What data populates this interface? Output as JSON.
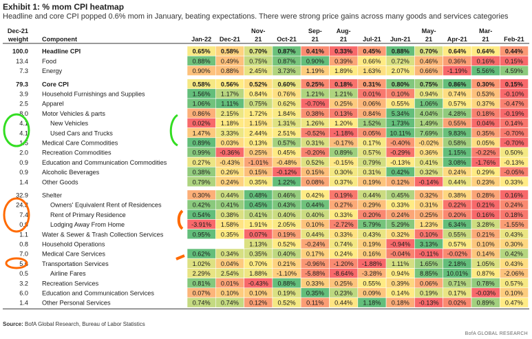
{
  "exhibit_title": "Exhibit 1: % mom CPI heatmap",
  "exhibit_subtitle": "Headline and core CPI popped 0.6% mom in January, beating expectations. There were strong price gains across many goods and services categories",
  "source": {
    "label": "Source:",
    "text": "BofA Global Research, Bureau of Labor Statistics"
  },
  "brand": "BofA GLOBAL RESEARCH",
  "colors": {
    "green": "#63be7b",
    "yellow": "#ffeb84",
    "red": "#f8696b",
    "empty": "#ffffff",
    "annotation": "#33dd22",
    "annotation_orange": "#ff6a00"
  },
  "chart_data": {
    "type": "heatmap",
    "title": "Exhibit 1: % mom CPI heatmap",
    "subtitle": "Headline and core CPI popped 0.6% mom in January, beating expectations. There were strong price gains across many goods and services categories",
    "weight_header": [
      "Dec-21",
      "weight"
    ],
    "component_header": "Component",
    "columns": [
      [
        "",
        "Jan-22"
      ],
      [
        "",
        "Dec-21"
      ],
      [
        "Nov-",
        "21"
      ],
      [
        "",
        "Oct-21"
      ],
      [
        "Sep-",
        "21"
      ],
      [
        "Aug-",
        "21"
      ],
      [
        "",
        "Jul-21"
      ],
      [
        "",
        "Jun-21"
      ],
      [
        "May-",
        "21"
      ],
      [
        "",
        "Apr-21"
      ],
      [
        "Mar-",
        "21"
      ],
      [
        "",
        "Feb-21"
      ]
    ],
    "rows": [
      {
        "weight": "100.0",
        "label": "Headline CPI",
        "bold": true,
        "indent": 0,
        "values": [
          "0.65%",
          "0.58%",
          "0.70%",
          "0.87%",
          "0.41%",
          "0.33%",
          "0.45%",
          "0.88%",
          "0.70%",
          "0.64%",
          "0.64%",
          "0.44%"
        ]
      },
      {
        "weight": "13.4",
        "label": "Food",
        "indent": 0,
        "values": [
          "0.88%",
          "0.49%",
          "0.75%",
          "0.87%",
          "0.90%",
          "0.39%",
          "0.66%",
          "0.72%",
          "0.46%",
          "0.36%",
          "0.16%",
          "0.15%"
        ]
      },
      {
        "weight": "7.3",
        "label": "Energy",
        "indent": 0,
        "values": [
          "0.90%",
          "0.88%",
          "2.45%",
          "3.73%",
          "1.19%",
          "1.89%",
          "1.63%",
          "2.07%",
          "0.66%",
          "-1.19%",
          "5.56%",
          "4.59%"
        ]
      },
      {
        "gap": true
      },
      {
        "weight": "79.3",
        "label": "Core CPI",
        "bold": true,
        "indent": 0,
        "values": [
          "0.58%",
          "0.56%",
          "0.52%",
          "0.60%",
          "0.25%",
          "0.18%",
          "0.31%",
          "0.80%",
          "0.75%",
          "0.86%",
          "0.30%",
          "0.15%"
        ]
      },
      {
        "weight": "3.9",
        "label": "Household Furnishings and Supplies",
        "indent": 0,
        "values": [
          "1.56%",
          "1.17%",
          "0.84%",
          "0.76%",
          "1.21%",
          "1.21%",
          "0.01%",
          "0.10%",
          "0.94%",
          "0.74%",
          "0.53%",
          "-0.10%"
        ]
      },
      {
        "weight": "2.5",
        "label": "Apparel",
        "indent": 0,
        "values": [
          "1.06%",
          "1.11%",
          "0.75%",
          "0.62%",
          "-0.70%",
          "0.25%",
          "0.06%",
          "0.55%",
          "1.06%",
          "0.57%",
          "0.37%",
          "-0.47%"
        ]
      },
      {
        "weight": "8.0",
        "label": "Motor Vehicles & parts",
        "indent": 0,
        "values": [
          "0.86%",
          "2.15%",
          "1.72%",
          "1.84%",
          "0.38%",
          "0.13%",
          "0.84%",
          "5.34%",
          "4.04%",
          "4.28%",
          "0.18%",
          "-0.19%"
        ]
      },
      {
        "weight": "4.1",
        "label": "New Vehicles",
        "indent": 1,
        "values": [
          "0.02%",
          "1.18%",
          "1.15%",
          "1.31%",
          "1.26%",
          "1.20%",
          "1.52%",
          "1.73%",
          "1.49%",
          "0.55%",
          "0.04%",
          "0.14%"
        ]
      },
      {
        "weight": "4.1",
        "label": "Used Cars and Trucks",
        "indent": 1,
        "values": [
          "1.47%",
          "3.33%",
          "2.44%",
          "2.51%",
          "-0.52%",
          "-1.18%",
          "0.05%",
          "10.11%",
          "7.69%",
          "9.83%",
          "0.35%",
          "-0.70%"
        ]
      },
      {
        "weight": "1.5",
        "label": "Medical Care Commodities",
        "indent": 0,
        "values": [
          "0.89%",
          "0.03%",
          "0.13%",
          "0.57%",
          "0.31%",
          "-0.17%",
          "0.17%",
          "-0.40%",
          "-0.02%",
          "0.58%",
          "0.05%",
          "-0.70%"
        ]
      },
      {
        "weight": "2.0",
        "label": "Recreation Commodities",
        "indent": 0,
        "values": [
          "0.99%",
          "-0.36%",
          "0.25%",
          "0.45%",
          "-0.20%",
          "0.89%",
          "0.57%",
          "-0.29%",
          "0.36%",
          "1.15%",
          "-0.22%",
          "0.50%"
        ]
      },
      {
        "weight": "0.9",
        "label": "Education and Communication Commodities",
        "indent": 0,
        "values": [
          "0.27%",
          "-0.43%",
          "-1.01%",
          "-0.48%",
          "0.52%",
          "-0.15%",
          "0.79%",
          "-0.13%",
          "0.41%",
          "3.08%",
          "-1.76%",
          "-0.13%"
        ]
      },
      {
        "weight": "0.9",
        "label": "Alcoholic Beverages",
        "indent": 0,
        "values": [
          "0.38%",
          "0.26%",
          "0.15%",
          "-0.12%",
          "0.15%",
          "0.30%",
          "0.31%",
          "0.42%",
          "0.32%",
          "0.24%",
          "0.29%",
          "-0.05%"
        ]
      },
      {
        "weight": "1.4",
        "label": "Other Goods",
        "indent": 0,
        "values": [
          "0.79%",
          "0.24%",
          "0.35%",
          "1.22%",
          "0.08%",
          "0.37%",
          "0.19%",
          "0.12%",
          "-0.14%",
          "0.44%",
          "0.23%",
          "0.33%"
        ]
      },
      {
        "gap": true
      },
      {
        "weight": "32.9",
        "label": "Shelter",
        "indent": 0,
        "values": [
          "0.30%",
          "0.44%",
          "0.48%",
          "0.46%",
          "0.42%",
          "0.19%",
          "0.44%",
          "0.45%",
          "0.32%",
          "0.38%",
          "0.28%",
          "0.16%"
        ]
      },
      {
        "weight": "24.3",
        "label": "Owners' Equivalent Rent of Residences",
        "indent": 1,
        "values": [
          "0.42%",
          "0.41%",
          "0.45%",
          "0.43%",
          "0.44%",
          "0.27%",
          "0.29%",
          "0.33%",
          "0.31%",
          "0.22%",
          "0.21%",
          "0.24%"
        ]
      },
      {
        "weight": "7.4",
        "label": "Rent of Primary Residence",
        "indent": 1,
        "values": [
          "0.54%",
          "0.38%",
          "0.41%",
          "0.40%",
          "0.40%",
          "0.33%",
          "0.20%",
          "0.24%",
          "0.25%",
          "0.20%",
          "0.16%",
          "0.18%"
        ]
      },
      {
        "weight": "0.9",
        "label": "Lodging Away From Home",
        "indent": 1,
        "values": [
          "-3.91%",
          "1.58%",
          "1.91%",
          "2.05%",
          "0.10%",
          "-2.72%",
          "5.79%",
          "5.29%",
          "1.23%",
          "6.34%",
          "3.28%",
          "-1.55%"
        ]
      },
      {
        "weight": "1.1",
        "label": "Water & Sewer & Trash Collection Services",
        "indent": 0,
        "values": [
          "0.95%",
          "0.35%",
          "0.07%",
          "0.19%",
          "0.44%",
          "0.33%",
          "0.43%",
          "0.32%",
          "0.10%",
          "0.55%",
          "0.21%",
          "0.43%"
        ]
      },
      {
        "weight": "0.8",
        "label": "Household Operations",
        "indent": 0,
        "values": [
          "",
          "",
          "1.13%",
          "0.52%",
          "-0.24%",
          "0.74%",
          "0.19%",
          "-0.94%",
          "3.13%",
          "0.57%",
          "0.10%",
          "0.30%"
        ]
      },
      {
        "weight": "7.0",
        "label": "Medical Care Services",
        "indent": 0,
        "values": [
          "0.62%",
          "0.34%",
          "0.35%",
          "0.40%",
          "0.17%",
          "0.24%",
          "0.16%",
          "-0.04%",
          "-0.11%",
          "-0.02%",
          "0.14%",
          "0.42%"
        ]
      },
      {
        "weight": "5.6",
        "label": "Transportation Services",
        "indent": 0,
        "values": [
          "1.02%",
          "0.04%",
          "0.70%",
          "0.21%",
          "-0.96%",
          "-1.20%",
          "-1.88%",
          "1.11%",
          "1.65%",
          "2.18%",
          "1.05%",
          "0.43%"
        ]
      },
      {
        "weight": "0.5",
        "label": "Airline Fares",
        "indent": 1,
        "values": [
          "2.29%",
          "2.54%",
          "1.88%",
          "-1.10%",
          "-5.88%",
          "-8.64%",
          "-3.28%",
          "0.94%",
          "8.85%",
          "10.01%",
          "0.87%",
          "-2.06%"
        ]
      },
      {
        "weight": "3.2",
        "label": "Recreation Services",
        "indent": 0,
        "values": [
          "0.81%",
          "0.01%",
          "-0.43%",
          "0.88%",
          "0.33%",
          "0.25%",
          "0.55%",
          "0.39%",
          "0.06%",
          "0.71%",
          "0.78%",
          "0.57%"
        ]
      },
      {
        "weight": "6.0",
        "label": "Education and Communication Services",
        "indent": 0,
        "values": [
          "0.07%",
          "0.10%",
          "0.10%",
          "0.19%",
          "0.35%",
          "0.23%",
          "0.09%",
          "0.14%",
          "0.19%",
          "0.17%",
          "-0.03%",
          "0.10%"
        ]
      },
      {
        "weight": "1.4",
        "label": "Other Personal Services",
        "indent": 0,
        "values": [
          "0.74%",
          "0.74%",
          "0.12%",
          "0.52%",
          "0.11%",
          "0.44%",
          "1.18%",
          "0.18%",
          "-0.13%",
          "0.02%",
          "0.89%",
          "0.47%"
        ]
      }
    ]
  }
}
